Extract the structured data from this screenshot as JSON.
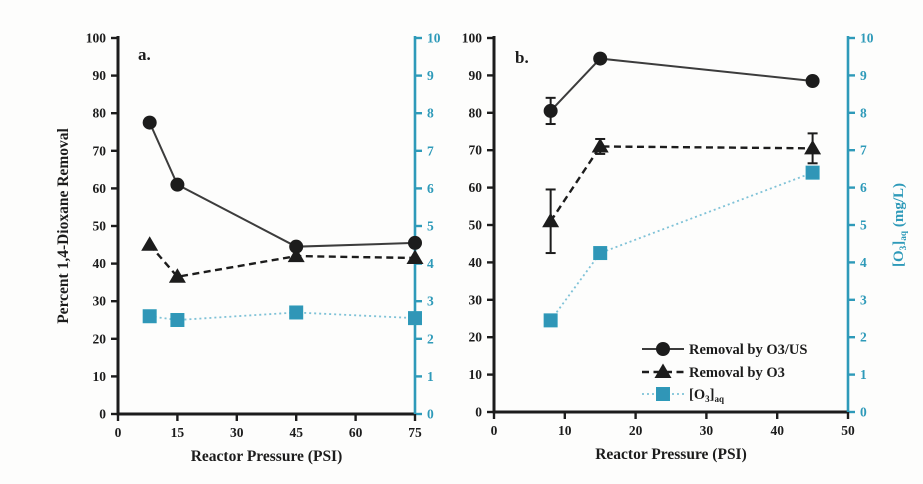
{
  "figure": {
    "background": "#fdfdfc",
    "colors": {
      "black": "#1c1c1c",
      "solid_line_gray": "#3c3c3c",
      "cyan": "#3096b7",
      "cyan_axis": "#2e9ab9",
      "cyan_light": "#7fc2d7"
    }
  },
  "chart_data": [
    {
      "type": "line",
      "panel_label": "a.",
      "xlabel": "Reactor Pressure (PSI)",
      "ylabel_left": "Percent 1,4-Dioxane Removal",
      "ylabel_right_parts": null,
      "xlim": [
        0,
        75
      ],
      "xticks": [
        0,
        15,
        30,
        45,
        60,
        75
      ],
      "ylim_left": [
        0,
        100
      ],
      "yticks_left": [
        0,
        10,
        20,
        30,
        40,
        50,
        60,
        70,
        80,
        90,
        100
      ],
      "ylim_right": [
        0,
        10
      ],
      "yticks_right": [
        0,
        1,
        2,
        3,
        4,
        5,
        6,
        7,
        8,
        9,
        10
      ],
      "grid": false,
      "x": [
        8,
        15,
        45,
        75
      ],
      "series": [
        {
          "name": "Removal by O3/US",
          "axis": "left",
          "marker": "circle",
          "line": "solid",
          "values": [
            77.5,
            61,
            44.5,
            45.5
          ],
          "yerr": [
            0,
            0,
            0,
            0
          ]
        },
        {
          "name": "Removal by O3",
          "axis": "left",
          "marker": "triangle",
          "line": "dashed",
          "values": [
            45,
            36.5,
            42,
            41.5
          ],
          "yerr": [
            0,
            0,
            0,
            0
          ]
        },
        {
          "name": "[O3]aq",
          "axis": "right",
          "marker": "square",
          "line": "dotted",
          "values": [
            2.6,
            2.5,
            2.7,
            2.55
          ],
          "yerr": [
            0,
            0,
            0,
            0
          ]
        }
      ],
      "legend": null
    },
    {
      "type": "line",
      "panel_label": "b.",
      "xlabel": "Reactor Pressure (PSI)",
      "ylabel_left": null,
      "ylabel_right_parts": [
        {
          "t": "[O"
        },
        {
          "t": "3",
          "sub": true
        },
        {
          "t": "]"
        },
        {
          "t": "aq",
          "sub": true
        },
        {
          "t": " (mg/L)"
        }
      ],
      "ylabel_right_plain": "[O3]aq (mg/L)",
      "xlim": [
        0,
        50
      ],
      "xticks": [
        0,
        10,
        20,
        30,
        40,
        50
      ],
      "ylim_left": [
        0,
        100
      ],
      "yticks_left": [
        0,
        10,
        20,
        30,
        40,
        50,
        60,
        70,
        80,
        90,
        100
      ],
      "ylim_right": [
        0,
        10
      ],
      "yticks_right": [
        0,
        1,
        2,
        3,
        4,
        5,
        6,
        7,
        8,
        9,
        10
      ],
      "grid": false,
      "x": [
        8,
        15,
        45
      ],
      "series": [
        {
          "name": "Removal by O3/US",
          "axis": "left",
          "marker": "circle",
          "line": "solid",
          "values": [
            80.5,
            94.5,
            88.5
          ],
          "yerr": [
            3.5,
            0,
            0
          ]
        },
        {
          "name": "Removal by O3",
          "axis": "left",
          "marker": "triangle",
          "line": "dashed",
          "values": [
            51,
            71,
            70.5
          ],
          "yerr": [
            8.5,
            2,
            4
          ]
        },
        {
          "name": "[O3]aq",
          "axis": "right",
          "marker": "square",
          "line": "dotted",
          "values": [
            2.45,
            4.25,
            6.4
          ],
          "yerr": [
            0,
            0,
            0
          ]
        }
      ],
      "legend": {
        "entries": [
          {
            "label_parts": [
              {
                "t": "Removal by O3/US"
              }
            ],
            "series": 0
          },
          {
            "label_parts": [
              {
                "t": "Removal by O3"
              }
            ],
            "series": 1
          },
          {
            "label_parts": [
              {
                "t": "[O"
              },
              {
                "t": "3",
                "sub": true
              },
              {
                "t": "]"
              },
              {
                "t": "aq",
                "sub": true
              }
            ],
            "series": 2
          }
        ]
      }
    }
  ]
}
